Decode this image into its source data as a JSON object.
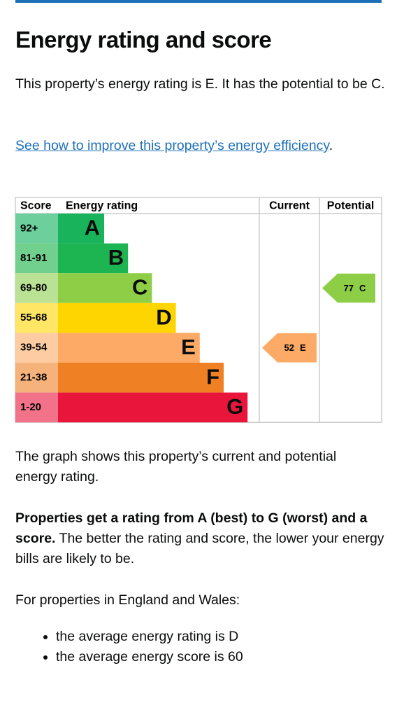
{
  "heading": "Energy rating and score",
  "intro": "This property’s energy rating is E. It has the potential to be C.",
  "link": {
    "text": "See how to improve this property’s energy efficiency",
    "suffix": "."
  },
  "rating_chart": {
    "headers": {
      "score": "Score",
      "rating": "Energy rating",
      "current": "Current",
      "potential": "Potential"
    },
    "bands": [
      {
        "score": "92+",
        "rating": "A",
        "color": "#19b35c",
        "score_color": "#6ccf9c"
      },
      {
        "score": "81-91",
        "rating": "B",
        "color": "#1db452",
        "score_color": "#72d08f"
      },
      {
        "score": "69-80",
        "rating": "C",
        "color": "#8dce46",
        "score_color": "#bbe294"
      },
      {
        "score": "55-68",
        "rating": "D",
        "color": "#ffd500",
        "score_color": "#ffe665"
      },
      {
        "score": "39-54",
        "rating": "E",
        "color": "#fcaa65",
        "score_color": "#fdcca3"
      },
      {
        "score": "21-38",
        "rating": "F",
        "color": "#ef8023",
        "score_color": "#f5b37b"
      },
      {
        "score": "1-20",
        "rating": "G",
        "color": "#e9153b",
        "score_color": "#f27389"
      }
    ],
    "current": {
      "score": 52,
      "rating": "E"
    },
    "potential": {
      "score": 77,
      "rating": "C"
    }
  },
  "graph_note": "The graph shows this property’s current and potential energy rating.",
  "scale_note": {
    "bold": "Properties get a rating from A (best) to G (worst) and a score.",
    "rest": "The better the rating and score, the lower your energy bills are likely to be."
  },
  "region_note": "For properties in England and Wales:",
  "bullets": [
    "the average energy rating is D",
    "the average energy score is 60"
  ]
}
